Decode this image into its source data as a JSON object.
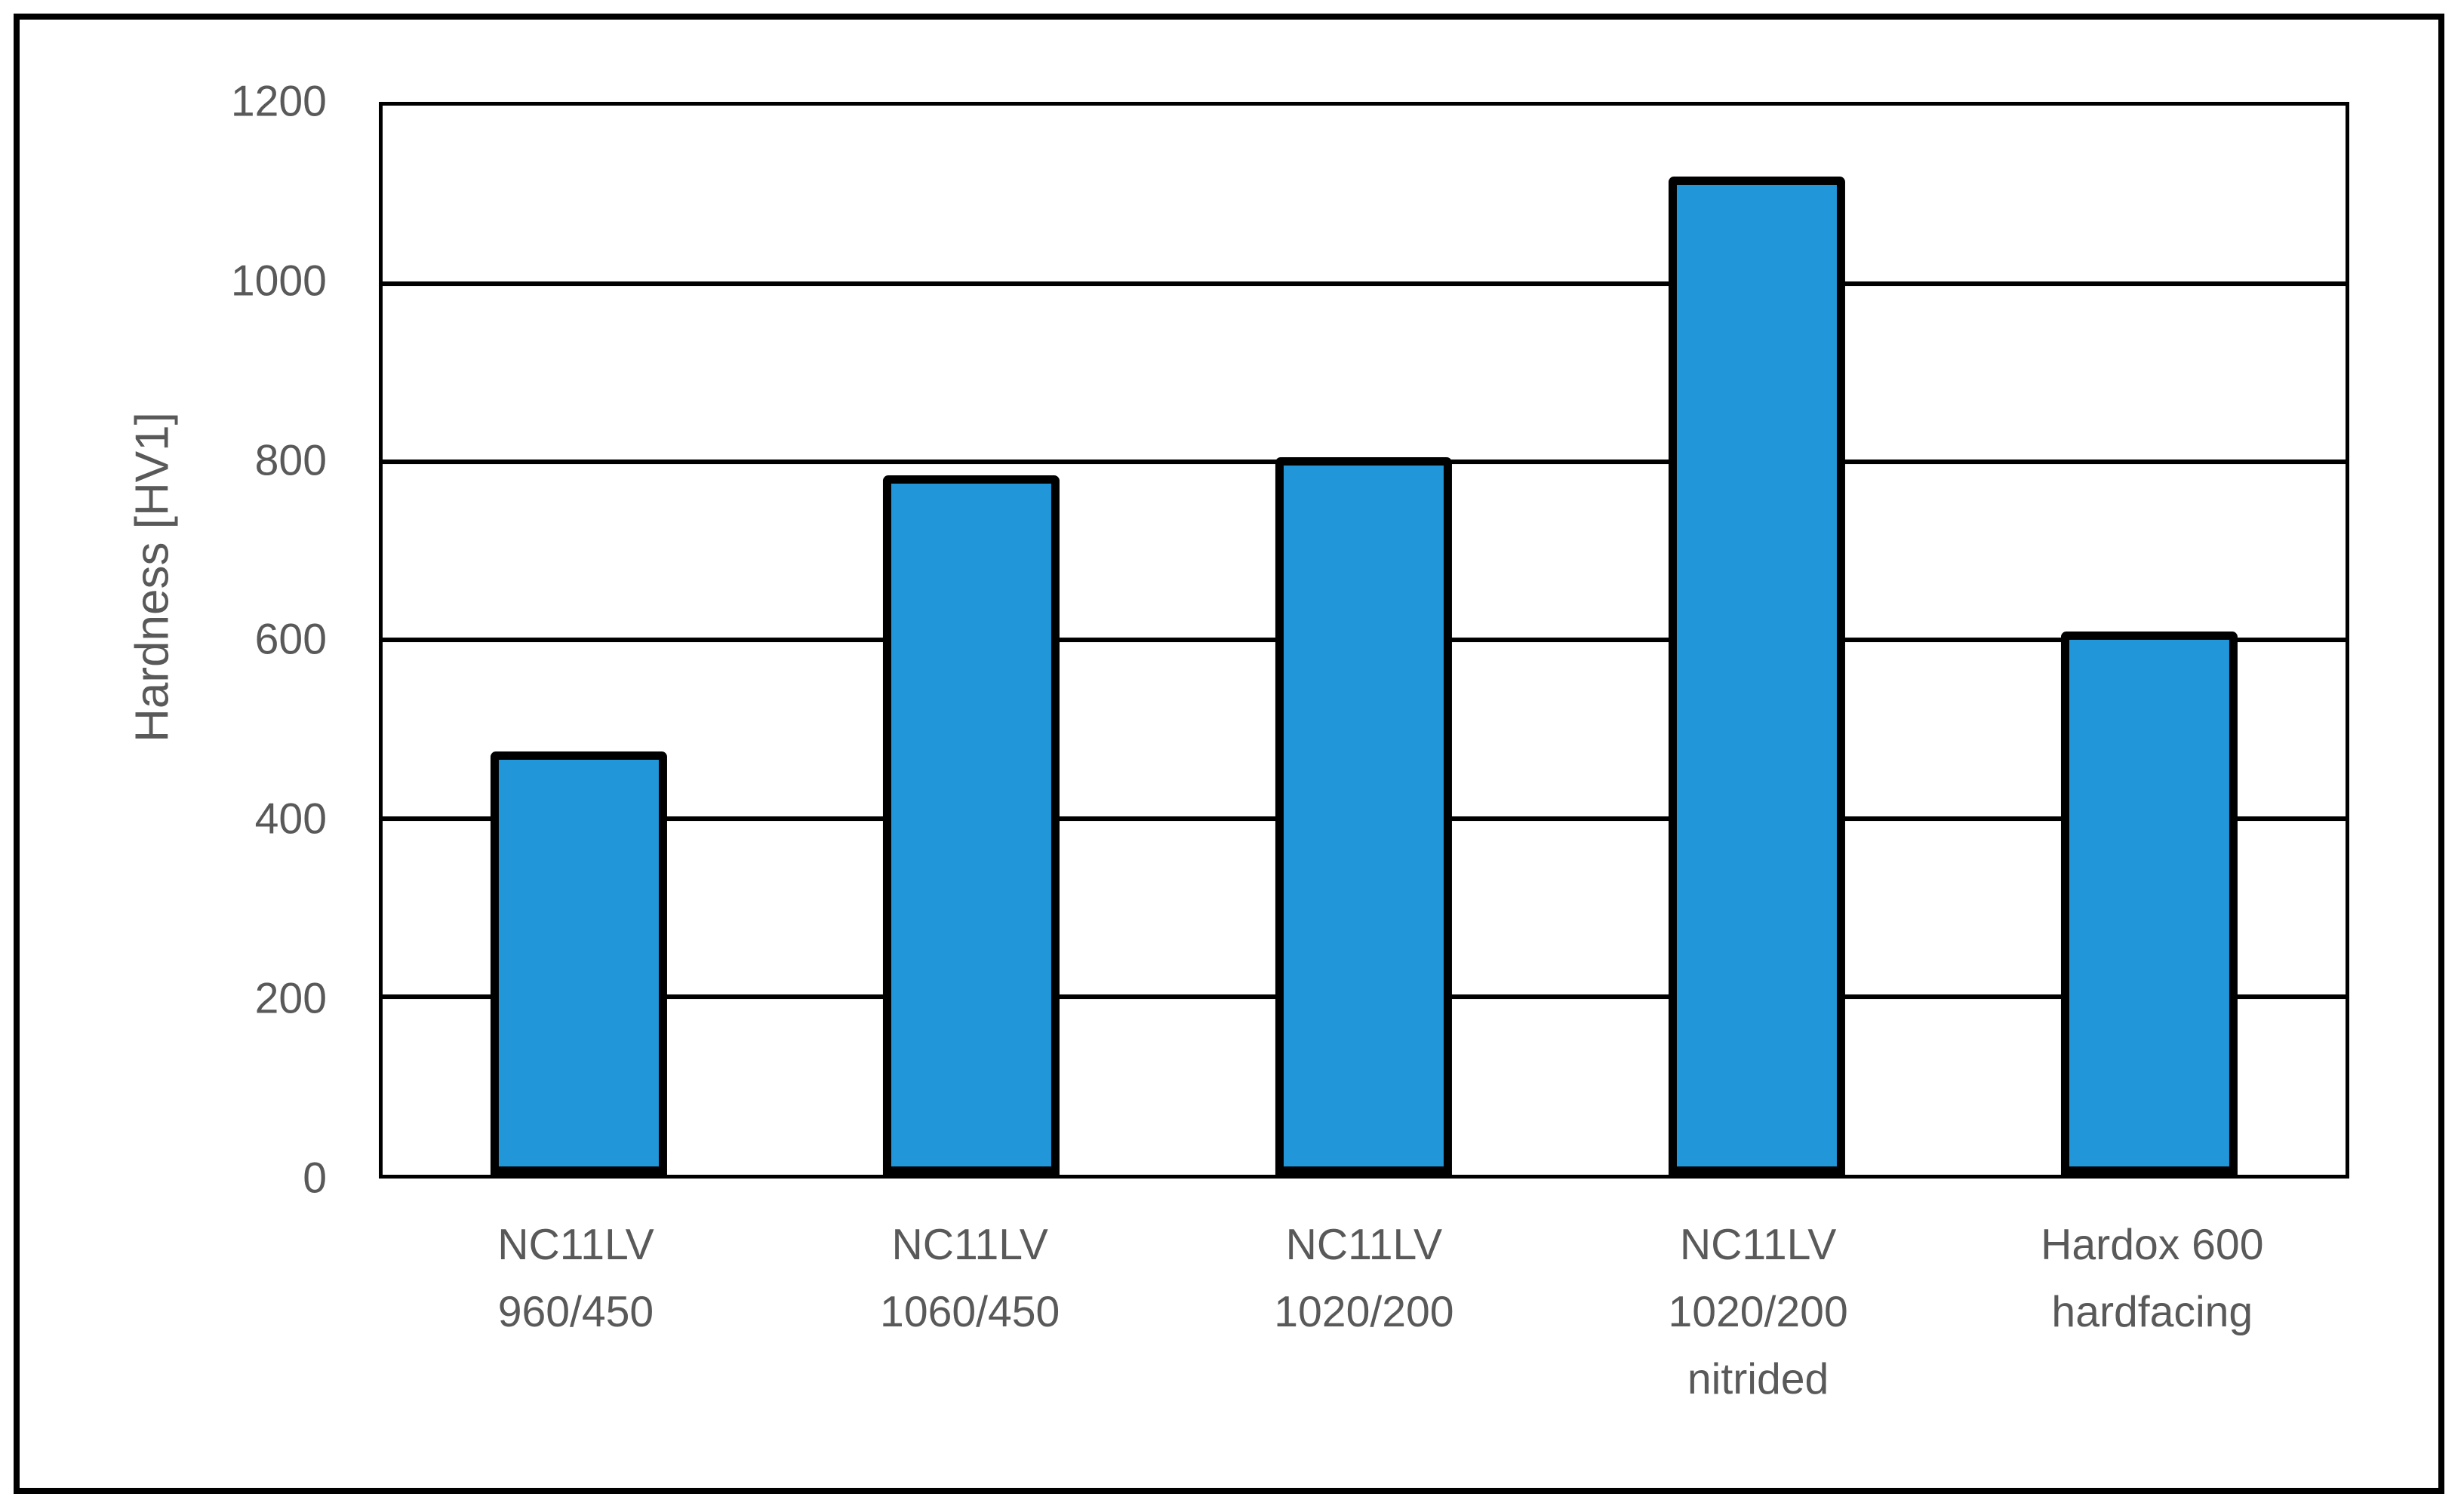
{
  "chart_data": {
    "type": "bar",
    "title": "",
    "xlabel": "",
    "ylabel": "Hardness [HV1]",
    "ylim": [
      0,
      1200
    ],
    "ytick_step": 200,
    "yticks": [
      0,
      200,
      400,
      600,
      800,
      1000,
      1200
    ],
    "categories": [
      "NC11LV 960/450",
      "NC11LV 1060/450",
      "NC11LV 1020/200",
      "NC11LV 1020/200 nitrided",
      "Hardox 600 hardfacing"
    ],
    "category_lines": [
      [
        "NC11LV",
        "960/450"
      ],
      [
        "NC11LV",
        "1060/450"
      ],
      [
        "NC11LV",
        "1020/200"
      ],
      [
        "NC11LV",
        "1020/200",
        "nitrided"
      ],
      [
        "Hardox 600",
        "hardfacing"
      ]
    ],
    "values": [
      475,
      785,
      805,
      1120,
      610
    ],
    "grid": true,
    "legend": false,
    "bar_width_frac": 0.45,
    "colors": {
      "bar_fill": "#2196d8",
      "bar_border": "#000000",
      "grid_line": "#000000",
      "text": "#595959",
      "frame": "#000000"
    }
  }
}
